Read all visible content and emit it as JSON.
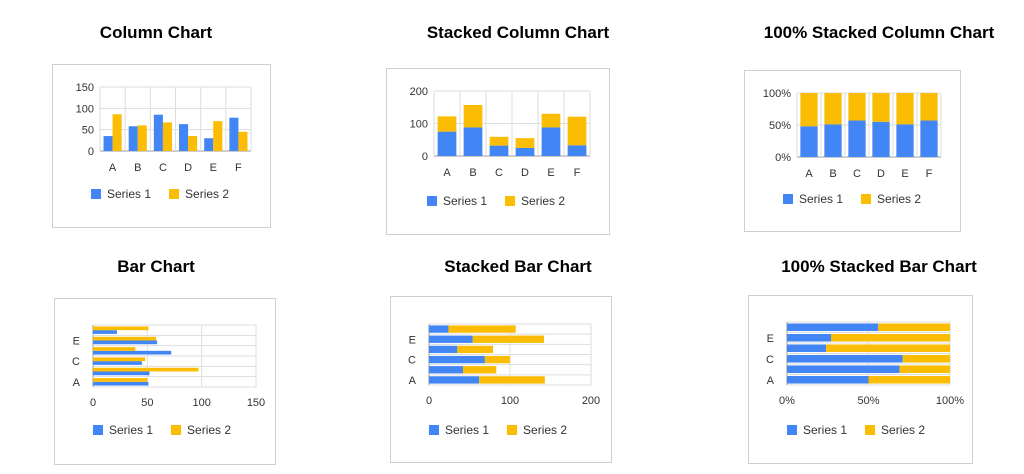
{
  "colors": {
    "series1": "#4285f4",
    "series2": "#fbbc04",
    "grid": "#dddddd",
    "axis": "#999999",
    "text": "#333333"
  },
  "titles": {
    "column": "Column Chart",
    "stacked_column": "Stacked Column Chart",
    "pct_column": "100% Stacked Column Chart",
    "bar": "Bar Chart",
    "stacked_bar": "Stacked Bar Chart",
    "pct_bar": "100% Stacked Bar Chart"
  },
  "legend": {
    "s1": "Series 1",
    "s2": "Series 2"
  },
  "chart_data": [
    {
      "type": "bar",
      "orientation": "vertical",
      "mode": "grouped",
      "title": "Column Chart",
      "categories": [
        "A",
        "B",
        "C",
        "D",
        "E",
        "F"
      ],
      "series": [
        {
          "name": "Series 1",
          "values": [
            35,
            58,
            85,
            63,
            30,
            78
          ]
        },
        {
          "name": "Series 2",
          "values": [
            86,
            60,
            67,
            35,
            70,
            45
          ]
        }
      ],
      "ylim": [
        0,
        150
      ],
      "ticks": [
        "0",
        "50",
        "100",
        "150"
      ],
      "tick_values": [
        0,
        50,
        100,
        150
      ]
    },
    {
      "type": "bar",
      "orientation": "vertical",
      "mode": "stacked",
      "title": "Stacked Column Chart",
      "categories": [
        "A",
        "B",
        "C",
        "D",
        "E",
        "F"
      ],
      "series": [
        {
          "name": "Series 1",
          "values": [
            75,
            88,
            32,
            25,
            88,
            33
          ]
        },
        {
          "name": "Series 2",
          "values": [
            47,
            69,
            27,
            30,
            42,
            88
          ]
        }
      ],
      "ylim": [
        0,
        200
      ],
      "ticks": [
        "0",
        "100",
        "200"
      ],
      "tick_values": [
        0,
        100,
        200
      ]
    },
    {
      "type": "bar",
      "orientation": "vertical",
      "mode": "percent",
      "title": "100% Stacked Column Chart",
      "categories": [
        "A",
        "B",
        "C",
        "D",
        "E",
        "F"
      ],
      "series": [
        {
          "name": "Series 1",
          "values": [
            48,
            51,
            57,
            55,
            51,
            57
          ]
        },
        {
          "name": "Series 2",
          "values": [
            52,
            49,
            43,
            45,
            49,
            43
          ]
        }
      ],
      "ylim": [
        0,
        100
      ],
      "ticks": [
        "0%",
        "50%",
        "100%"
      ],
      "tick_values": [
        0,
        50,
        100
      ]
    },
    {
      "type": "bar",
      "orientation": "horizontal",
      "mode": "grouped",
      "title": "Bar Chart",
      "categories": [
        "A",
        "B",
        "C",
        "D",
        "E",
        "F"
      ],
      "category_labels": [
        "A",
        "",
        "C",
        "",
        "E",
        ""
      ],
      "series": [
        {
          "name": "Series 1",
          "values": [
            51,
            52,
            45,
            72,
            59,
            22
          ]
        },
        {
          "name": "Series 2",
          "values": [
            50,
            97,
            48,
            39,
            58,
            51
          ]
        }
      ],
      "xlim": [
        0,
        150
      ],
      "ticks": [
        "0",
        "50",
        "100",
        "150"
      ],
      "tick_values": [
        0,
        50,
        100,
        150
      ]
    },
    {
      "type": "bar",
      "orientation": "horizontal",
      "mode": "stacked",
      "title": "Stacked Bar Chart",
      "categories": [
        "A",
        "B",
        "C",
        "D",
        "E",
        "F"
      ],
      "category_labels": [
        "A",
        "",
        "C",
        "",
        "E",
        ""
      ],
      "series": [
        {
          "name": "Series 1",
          "values": [
            62,
            42,
            69,
            35,
            54,
            24
          ]
        },
        {
          "name": "Series 2",
          "values": [
            81,
            41,
            31,
            44,
            88,
            83
          ]
        }
      ],
      "xlim": [
        0,
        200
      ],
      "ticks": [
        "0",
        "100",
        "200"
      ],
      "tick_values": [
        0,
        100,
        200
      ]
    },
    {
      "type": "bar",
      "orientation": "horizontal",
      "mode": "percent",
      "title": "100% Stacked Bar Chart",
      "categories": [
        "A",
        "B",
        "C",
        "D",
        "E",
        "F"
      ],
      "category_labels": [
        "A",
        "",
        "C",
        "",
        "E",
        ""
      ],
      "series": [
        {
          "name": "Series 1",
          "values": [
            50,
            69,
            71,
            24,
            27,
            56
          ]
        },
        {
          "name": "Series 2",
          "values": [
            50,
            31,
            29,
            76,
            73,
            44
          ]
        }
      ],
      "xlim": [
        0,
        100
      ],
      "ticks": [
        "0%",
        "50%",
        "100%"
      ],
      "tick_values": [
        0,
        50,
        100
      ]
    }
  ]
}
